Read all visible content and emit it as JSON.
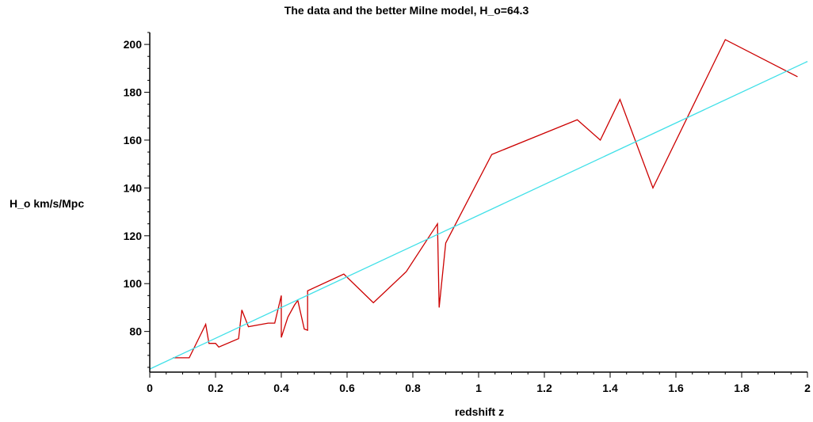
{
  "chart_data": {
    "type": "line",
    "title": "The data and the better Milne model, H_o=64.3",
    "xlabel": "redshift z",
    "ylabel": "H_o km/s/Mpc",
    "xlim": [
      0,
      2
    ],
    "ylim": [
      63,
      205
    ],
    "x_ticks": [
      0,
      0.2,
      0.4,
      0.6,
      0.8,
      1,
      1.2,
      1.4,
      1.6,
      1.8,
      2
    ],
    "x_tick_labels": [
      "0",
      "0.2",
      "0.4",
      "0.6",
      "0.8",
      "1",
      "1.2",
      "1.4",
      "1.6",
      "1.8",
      "2"
    ],
    "y_ticks": [
      80,
      100,
      120,
      140,
      160,
      180,
      200
    ],
    "y_tick_labels": [
      "80",
      "100",
      "120",
      "140",
      "160",
      "180",
      "200"
    ],
    "grid": false,
    "legend": "none",
    "series": [
      {
        "color": "#cc0000",
        "x": [
          0.07,
          0.12,
          0.17,
          0.18,
          0.2,
          0.21,
          0.27,
          0.28,
          0.3,
          0.36,
          0.38,
          0.4,
          0.4,
          0.42,
          0.44,
          0.45,
          0.47,
          0.48,
          0.48,
          0.59,
          0.68,
          0.78,
          0.875,
          0.88,
          0.9,
          1.04,
          1.3,
          1.37,
          1.43,
          1.53,
          1.75,
          1.97
        ],
        "y": [
          69,
          69,
          83,
          75,
          75,
          73.5,
          77,
          89,
          82,
          83.5,
          83.5,
          95,
          77.5,
          86,
          91,
          93,
          81,
          80.5,
          97,
          104,
          92,
          105,
          125,
          90,
          117,
          154,
          168.5,
          160,
          177,
          140,
          202,
          186.5
        ]
      },
      {
        "color": "#40e0e8",
        "x": [
          0,
          2
        ],
        "y": [
          64.3,
          192.9
        ]
      }
    ]
  }
}
